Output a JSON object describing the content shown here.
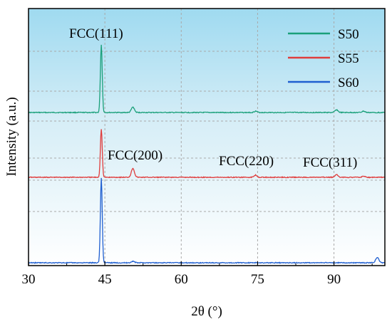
{
  "chart_data": {
    "type": "line",
    "xlabel": "2θ (°)",
    "ylabel": "Intensity (a.u.)",
    "xlim": [
      30,
      100
    ],
    "x_ticks": [
      30,
      45,
      60,
      75,
      90
    ],
    "grid": true,
    "legend_position": "top-right",
    "background": "gradient light-blue top to white",
    "annotations": [
      {
        "text": "FCC(111)",
        "x": 44.3
      },
      {
        "text": "FCC(200)",
        "x": 50.5
      },
      {
        "text": "FCC(220)",
        "x": 74.6
      },
      {
        "text": "FCC(311)",
        "x": 90.5
      }
    ],
    "series": [
      {
        "name": "S50",
        "color": "#1aa07a",
        "peaks": [
          {
            "x": 44.3,
            "height": 1.0
          },
          {
            "x": 50.5,
            "height": 0.08
          },
          {
            "x": 74.6,
            "height": 0.02
          },
          {
            "x": 90.5,
            "height": 0.04
          },
          {
            "x": 95.8,
            "height": 0.02
          }
        ]
      },
      {
        "name": "S55",
        "color": "#e03c3c",
        "peaks": [
          {
            "x": 44.3,
            "height": 0.85
          },
          {
            "x": 50.5,
            "height": 0.16
          },
          {
            "x": 74.6,
            "height": 0.04
          },
          {
            "x": 90.5,
            "height": 0.05
          },
          {
            "x": 95.8,
            "height": 0.02
          }
        ]
      },
      {
        "name": "S60",
        "color": "#1f5fd0",
        "peaks": [
          {
            "x": 44.3,
            "height": 1.1
          },
          {
            "x": 50.5,
            "height": 0.02
          },
          {
            "x": 98.5,
            "height": 0.07
          }
        ]
      }
    ]
  }
}
